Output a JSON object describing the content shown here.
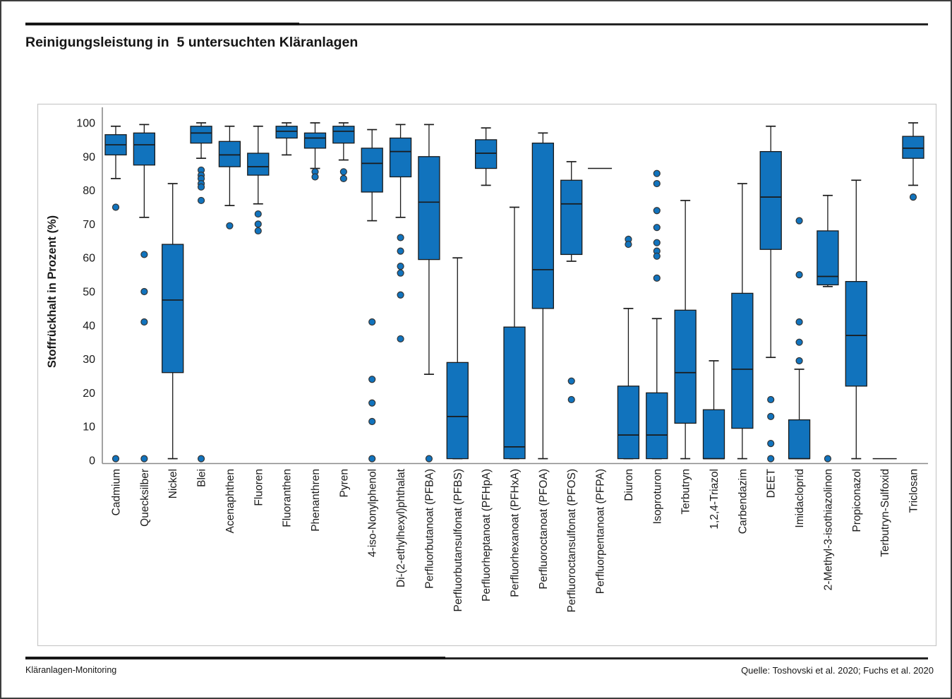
{
  "page": {
    "title": "Reinigungsleistung in  5 untersuchten Kläranlagen",
    "footer_left": "Kläranlagen-Monitoring",
    "footer_right": "Quelle: Toshovski et al. 2020; Fuchs et al. 2020"
  },
  "colors": {
    "box_fill": "#1173BD",
    "box_stroke": "#1a1a1a",
    "axis_line": "#8a8a8a",
    "panel_border": "#c8c8c8",
    "text": "#1a1a1a"
  },
  "chart_data": {
    "type": "boxplot",
    "title": "Reinigungsleistung in 5 untersuchten Kläranlagen",
    "xlabel": "",
    "ylabel": "Stoffrückhalt in Prozent (%)",
    "ylim": [
      0,
      100
    ],
    "yticks": [
      0,
      10,
      20,
      30,
      40,
      50,
      60,
      70,
      80,
      90,
      100
    ],
    "grid": false,
    "legend": false,
    "series": [
      {
        "label": "Cadmium",
        "low": 83.5,
        "q1": 90.5,
        "median": 93.5,
        "q3": 96.5,
        "high": 99,
        "outliers": [
          75,
          0.5
        ]
      },
      {
        "label": "Quecksilber",
        "low": 72,
        "q1": 87.5,
        "median": 93.5,
        "q3": 97,
        "high": 99.5,
        "outliers": [
          61,
          50,
          41,
          0.5
        ]
      },
      {
        "label": "Nickel",
        "low": 0.5,
        "q1": 26,
        "median": 47.5,
        "q3": 64,
        "high": 82,
        "outliers": []
      },
      {
        "label": "Blei",
        "low": 89.5,
        "q1": 94,
        "median": 97,
        "q3": 99,
        "high": 100,
        "outliers": [
          86,
          84.5,
          83.5,
          82,
          81,
          77,
          0.5
        ]
      },
      {
        "label": "Acenaphthen",
        "low": 75.5,
        "q1": 87,
        "median": 90.5,
        "q3": 94.5,
        "high": 99,
        "outliers": [
          69.5
        ]
      },
      {
        "label": "Fluoren",
        "low": 76,
        "q1": 84.5,
        "median": 87,
        "q3": 91,
        "high": 99,
        "outliers": [
          73,
          70,
          68
        ]
      },
      {
        "label": "Fluoranthen",
        "low": 90.5,
        "q1": 95.5,
        "median": 97.5,
        "q3": 99,
        "high": 100,
        "outliers": []
      },
      {
        "label": "Phenanthren",
        "low": 86.5,
        "q1": 92.5,
        "median": 95.5,
        "q3": 97,
        "high": 100,
        "outliers": [
          85.5,
          84
        ]
      },
      {
        "label": "Pyren",
        "low": 89,
        "q1": 94,
        "median": 97.5,
        "q3": 99,
        "high": 100,
        "outliers": [
          85.5,
          83.5
        ]
      },
      {
        "label": "4-iso-Nonylphenol",
        "low": 71,
        "q1": 79.5,
        "median": 88,
        "q3": 92.5,
        "high": 98,
        "outliers": [
          41,
          24,
          17,
          11.5,
          0.5
        ]
      },
      {
        "label": "Di-(2-ethylhexyl)phthalat",
        "low": 72,
        "q1": 84,
        "median": 91.5,
        "q3": 95.5,
        "high": 99.5,
        "outliers": [
          66,
          62,
          57.5,
          55.5,
          49,
          36
        ]
      },
      {
        "label": "Perfluorbutanoat (PFBA)",
        "low": 25.5,
        "q1": 59.5,
        "median": 76.5,
        "q3": 90,
        "high": 99.5,
        "outliers": [
          0.5
        ]
      },
      {
        "label": "Perfluorbutansulfonat (PFBS)",
        "low": 0.5,
        "q1": 0.5,
        "median": 13,
        "q3": 29,
        "high": 60,
        "outliers": []
      },
      {
        "label": "Perfluorheptanoat (PFHpA)",
        "low": 81.5,
        "q1": 86.5,
        "median": 91,
        "q3": 95,
        "high": 98.5,
        "outliers": []
      },
      {
        "label": "Perfluorhexanoat (PFHxA)",
        "low": 0.5,
        "q1": 0.5,
        "median": 4,
        "q3": 39.5,
        "high": 75,
        "outliers": []
      },
      {
        "label": "Perfluoroctanoat (PFOA)",
        "low": 0.5,
        "q1": 45,
        "median": 56.5,
        "q3": 94,
        "high": 97,
        "outliers": []
      },
      {
        "label": "Perfluoroctansulfonat (PFOS)",
        "low": 59,
        "q1": 61,
        "median": 76,
        "q3": 83,
        "high": 88.5,
        "outliers": [
          23.5,
          18
        ]
      },
      {
        "label": "Perfluorpentanoat (PFPA)",
        "line_only": true,
        "median": 86.5,
        "outliers": []
      },
      {
        "label": "Diuron",
        "low": 0.5,
        "q1": 0.5,
        "median": 7.5,
        "q3": 22,
        "high": 45,
        "outliers": [
          65.5,
          64
        ]
      },
      {
        "label": "Isoproturon",
        "low": 0.5,
        "q1": 0.5,
        "median": 7.5,
        "q3": 20,
        "high": 42,
        "outliers": [
          85,
          82,
          74,
          69,
          64.5,
          62,
          60.5,
          54
        ]
      },
      {
        "label": "Terbutryn",
        "low": 0.5,
        "q1": 11,
        "median": 26,
        "q3": 44.5,
        "high": 77,
        "outliers": []
      },
      {
        "label": "1,2,4-Triazol",
        "low": 0.5,
        "q1": 0.5,
        "median": 0.5,
        "q3": 15,
        "high": 29.5,
        "outliers": []
      },
      {
        "label": "Carbendazim",
        "low": 0.5,
        "q1": 9.5,
        "median": 27,
        "q3": 49.5,
        "high": 82,
        "outliers": []
      },
      {
        "label": "DEET",
        "low": 30.5,
        "q1": 62.5,
        "median": 78,
        "q3": 91.5,
        "high": 99,
        "outliers": [
          18,
          13,
          5,
          0.5
        ]
      },
      {
        "label": "Imidacloprid",
        "low": 0.5,
        "q1": 0.5,
        "median": 0.5,
        "q3": 12,
        "high": 27,
        "outliers": [
          71,
          55,
          41,
          35,
          29.5
        ]
      },
      {
        "label": "2-Methyl-3-isothiazolinon",
        "low": 51.5,
        "q1": 52,
        "median": 54.5,
        "q3": 68,
        "high": 78.5,
        "outliers": [
          0.5
        ]
      },
      {
        "label": "Propiconazol",
        "low": 0.5,
        "q1": 22,
        "median": 37,
        "q3": 53,
        "high": 83,
        "outliers": []
      },
      {
        "label": "Terbutryn-Sulfoxid",
        "line_only": true,
        "median": 0.5,
        "outliers": []
      },
      {
        "label": "Triclosan",
        "low": 81.5,
        "q1": 89.5,
        "median": 92.5,
        "q3": 96,
        "high": 100,
        "outliers": [
          78
        ]
      }
    ]
  }
}
